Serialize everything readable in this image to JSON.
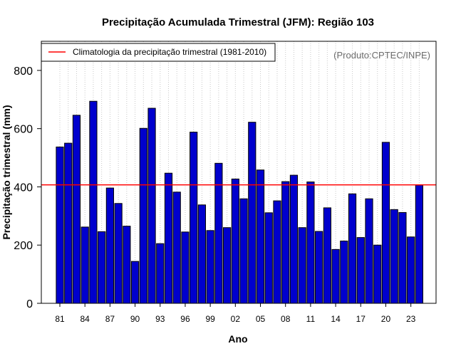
{
  "chart_data": {
    "type": "bar",
    "title": "Precipitação Acumulada Trimestral (JFM): Região 103",
    "xlabel": "Ano",
    "ylabel": "Precipitação trimestral (mm)",
    "credit": "(Produto:CPTEC/INPE)",
    "ylim": [
      0,
      900
    ],
    "yticks": [
      0,
      200,
      400,
      600,
      800
    ],
    "grid": "vertical dotted",
    "categories": [
      "1981",
      "1982",
      "1983",
      "1984",
      "1985",
      "1986",
      "1987",
      "1988",
      "1989",
      "1990",
      "1991",
      "1992",
      "1993",
      "1994",
      "1995",
      "1996",
      "1997",
      "1998",
      "1999",
      "2000",
      "2001",
      "2002",
      "2003",
      "2004",
      "2005",
      "2006",
      "2007",
      "2008",
      "2009",
      "2010",
      "2011",
      "2012",
      "2013",
      "2014",
      "2015",
      "2016",
      "2017",
      "2018",
      "2019",
      "2020",
      "2021",
      "2022",
      "2023",
      "2024"
    ],
    "xtick_labels": [
      "81",
      "84",
      "87",
      "90",
      "93",
      "96",
      "99",
      "02",
      "05",
      "08",
      "11",
      "14",
      "17",
      "20",
      "23"
    ],
    "xtick_indices": [
      0,
      3,
      6,
      9,
      12,
      15,
      18,
      21,
      24,
      27,
      30,
      33,
      36,
      39,
      42
    ],
    "series": [
      {
        "name": "Precipitação trimestral",
        "color": "#0000cd",
        "values": [
          537,
          550,
          646,
          262,
          694,
          246,
          396,
          343,
          265,
          144,
          601,
          670,
          205,
          447,
          382,
          245,
          588,
          338,
          250,
          481,
          260,
          427,
          359,
          622,
          458,
          311,
          352,
          418,
          440,
          260,
          417,
          247,
          328,
          185,
          214,
          376,
          226,
          359,
          200,
          553,
          322,
          312,
          228,
          406
        ]
      }
    ],
    "reference_line": {
      "label": "Climatologia da precipitação trimestral (1981-2010)",
      "value": 407,
      "color": "#ff0000"
    },
    "legend_position": "top-left"
  }
}
